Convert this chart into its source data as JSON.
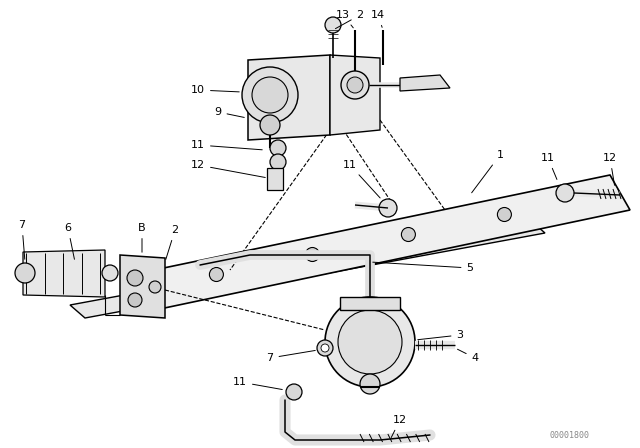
{
  "bg_color": "#ffffff",
  "line_color": "#000000",
  "watermark": "00001800",
  "fig_w": 6.4,
  "fig_h": 4.48,
  "dpi": 100
}
